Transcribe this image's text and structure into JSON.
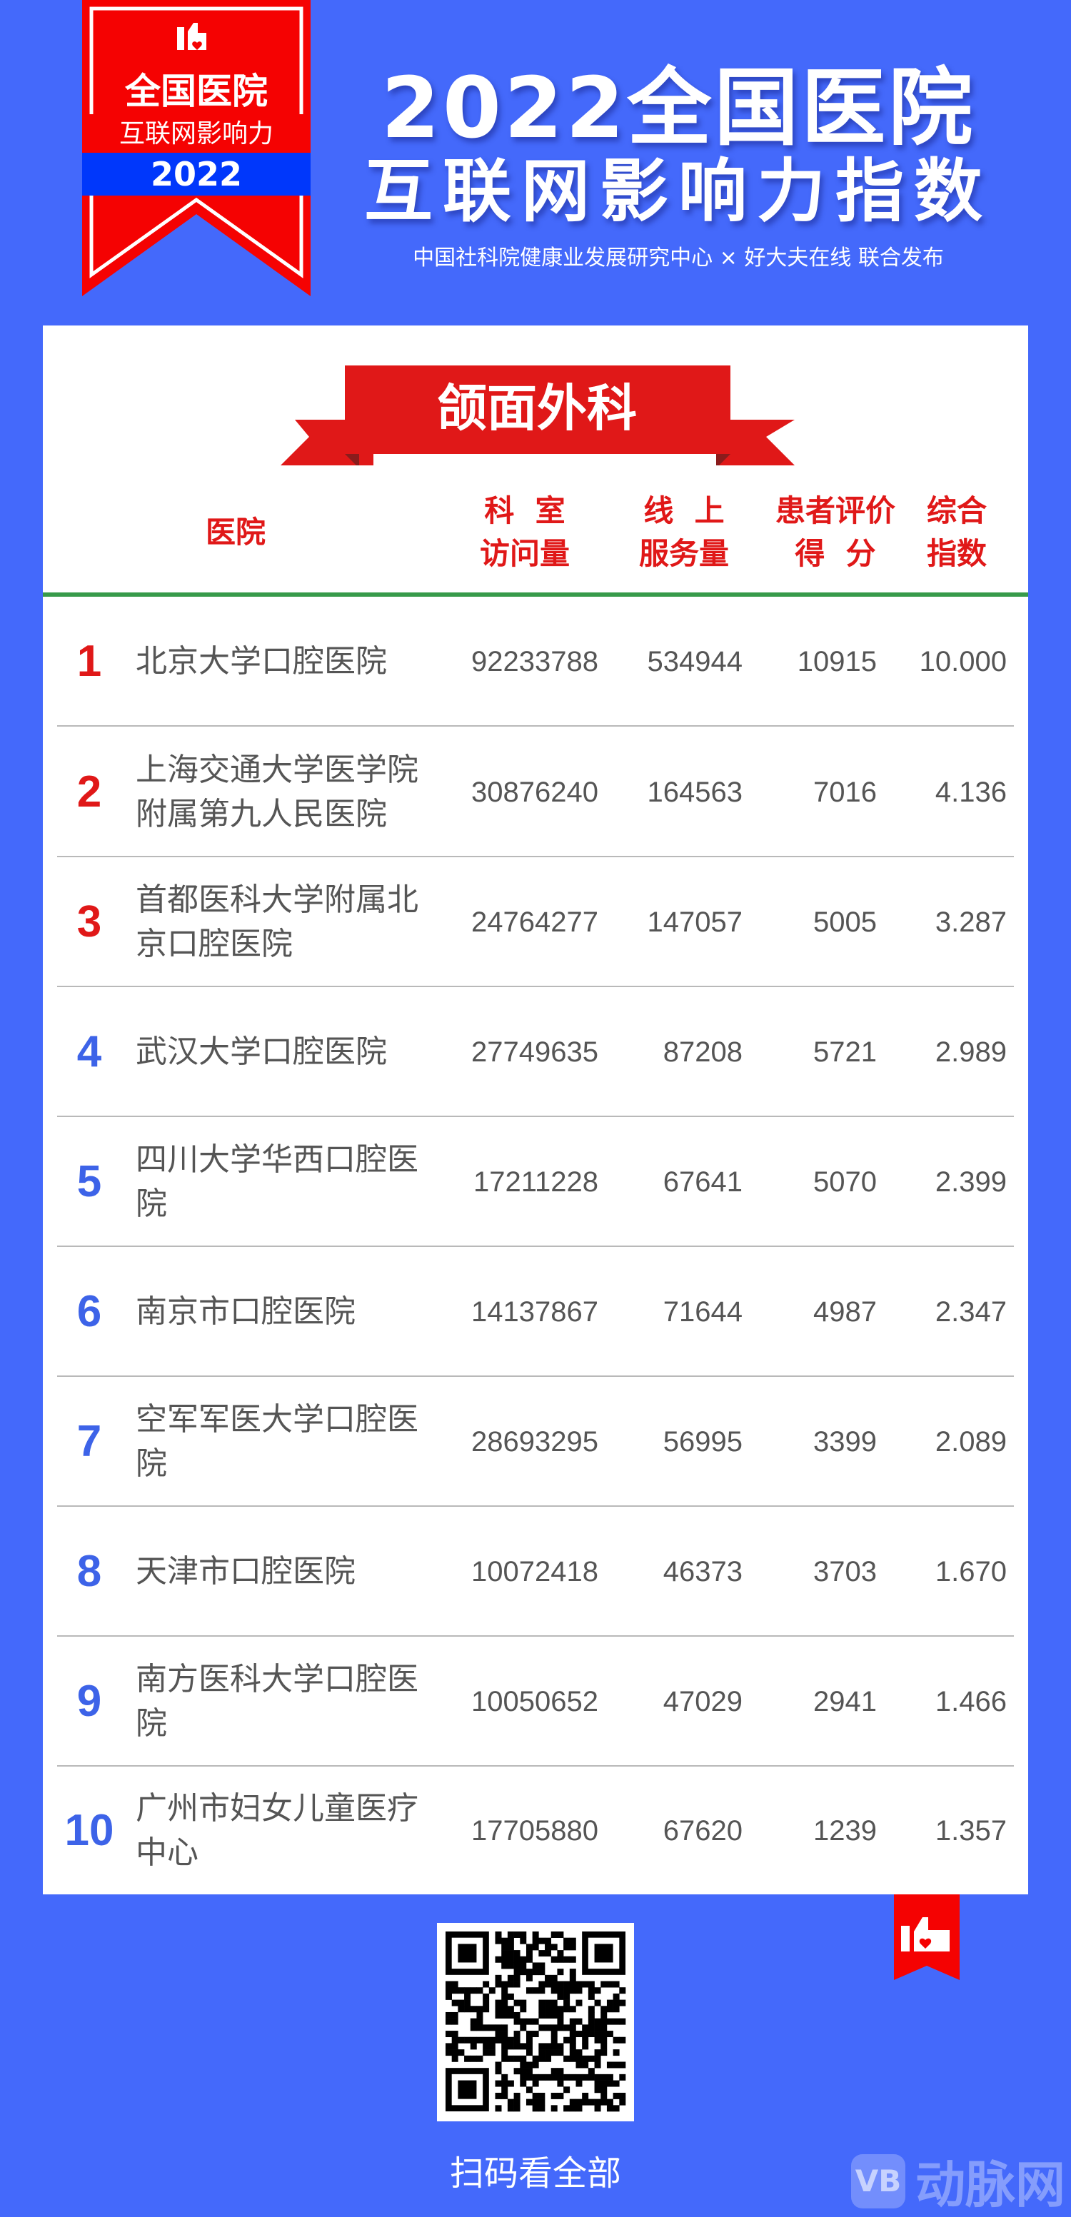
{
  "badge": {
    "line1": "全国医院",
    "line2": "互联网影响力",
    "year": "2022",
    "icon": "thumbs-up-heart-icon"
  },
  "header": {
    "title_line1": "2022全国医院",
    "title_line2": "互联网影响力指数",
    "subtitle": "中国社科院健康业发展研究中心 × 好大夫在线 联合发布"
  },
  "category": "颌面外科",
  "columns": {
    "hospital": "医院",
    "visits": "科  室\n访问量",
    "online_services": "线  上\n服务量",
    "patient_rating": "患者评价\n得  分",
    "index": "综合\n指数"
  },
  "colors": {
    "background": "#4469fb",
    "accent_red": "#e01818",
    "rank_top": "#e01818",
    "rank_other": "#3d63e8",
    "divider_green": "#379a4a"
  },
  "rows": [
    {
      "rank": "1",
      "hospital": "北京大学口腔医院",
      "visits": "92233788",
      "services": "534944",
      "rating": "10915",
      "index": "10.000"
    },
    {
      "rank": "2",
      "hospital": "上海交通大学医学院附属第九人民医院",
      "visits": "30876240",
      "services": "164563",
      "rating": "7016",
      "index": "4.136"
    },
    {
      "rank": "3",
      "hospital": "首都医科大学附属北京口腔医院",
      "visits": "24764277",
      "services": "147057",
      "rating": "5005",
      "index": "3.287"
    },
    {
      "rank": "4",
      "hospital": "武汉大学口腔医院",
      "visits": "27749635",
      "services": "87208",
      "rating": "5721",
      "index": "2.989"
    },
    {
      "rank": "5",
      "hospital": "四川大学华西口腔医院",
      "visits": "17211228",
      "services": "67641",
      "rating": "5070",
      "index": "2.399"
    },
    {
      "rank": "6",
      "hospital": "南京市口腔医院",
      "visits": "14137867",
      "services": "71644",
      "rating": "4987",
      "index": "2.347"
    },
    {
      "rank": "7",
      "hospital": "空军军医大学口腔医院",
      "visits": "28693295",
      "services": "56995",
      "rating": "3399",
      "index": "2.089"
    },
    {
      "rank": "8",
      "hospital": "天津市口腔医院",
      "visits": "10072418",
      "services": "46373",
      "rating": "3703",
      "index": "1.670"
    },
    {
      "rank": "9",
      "hospital": "南方医科大学口腔医院",
      "visits": "10050652",
      "services": "47029",
      "rating": "2941",
      "index": "1.466"
    },
    {
      "rank": "10",
      "hospital": "广州市妇女儿童医疗中心",
      "visits": "17705880",
      "services": "67620",
      "rating": "1239",
      "index": "1.357"
    }
  ],
  "footer": {
    "scan_text": "扫码看全部",
    "qr_icon": "qr-code-icon",
    "watermark": "动脉网",
    "watermark_logo": "VB"
  }
}
